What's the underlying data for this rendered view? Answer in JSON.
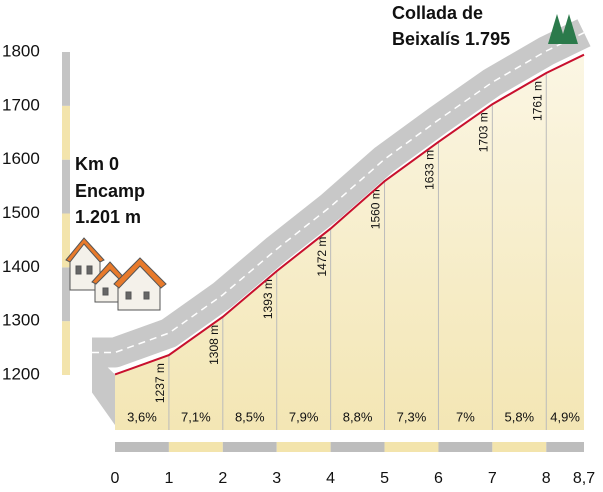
{
  "chart_data": {
    "type": "profile",
    "annotations": [
      "Km 0",
      "Encamp",
      "1.201 m",
      "Collada de",
      "Beixalís 1.795"
    ],
    "x": [
      0,
      1,
      2,
      3,
      4,
      5,
      6,
      7,
      8,
      8.7
    ],
    "values": [
      1201,
      1237,
      1308,
      1393,
      1472,
      1560,
      1633,
      1703,
      1761,
      1795
    ],
    "value_labels": [
      null,
      "1237 m",
      "1308 m",
      "1393 m",
      "1472 m",
      "1560 m",
      "1633 m",
      "1703 m",
      "1761 m",
      null
    ],
    "gradients": {
      "values": [
        3.6,
        7.1,
        8.5,
        7.9,
        8.8,
        7.3,
        7,
        5.8,
        4.9
      ],
      "value_labels": [
        "3,6%",
        "7,1%",
        "8,5%",
        "7,9%",
        "8,8%",
        "7,3%",
        "7%",
        "5,8%",
        "4,9%"
      ]
    },
    "color": "#c8102e",
    "xlim": [
      0,
      8.7
    ],
    "xticks": [
      0,
      1,
      2,
      3,
      4,
      5,
      6,
      7,
      8,
      {
        "value": 8.7,
        "label": "8,7"
      }
    ],
    "ylim": [
      1200,
      1800
    ],
    "yticks": [
      1200,
      1300,
      1400,
      1500,
      1600,
      1700,
      1800
    ]
  }
}
